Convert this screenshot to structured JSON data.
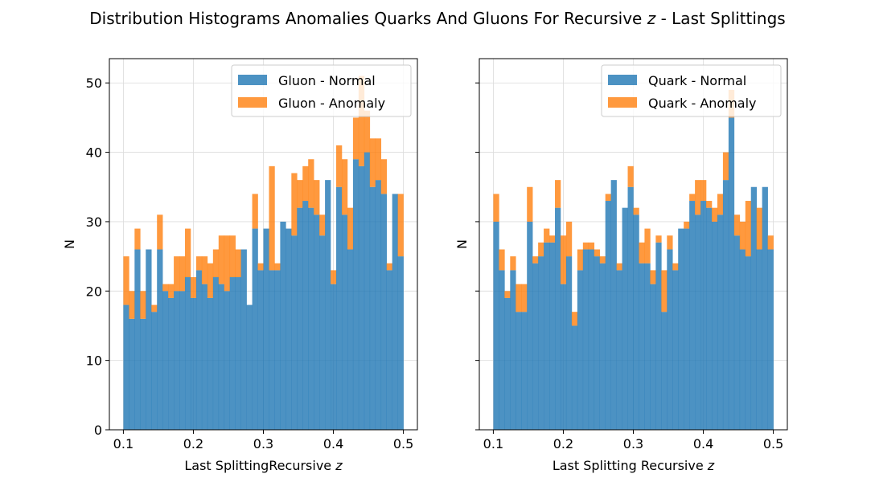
{
  "figure": {
    "title_prefix": "Distribution Histograms Anomalies Quarks And Gluons For Recursive ",
    "title_italic": "z",
    "title_suffix": " - Last Splittings"
  },
  "colors": {
    "normal": "#1f77b4",
    "anomaly": "#ff7f0e",
    "grid": "#dcdcdc"
  },
  "chart_data": [
    {
      "type": "bar",
      "stacked": true,
      "title": "",
      "xlabel_prefix": "Last SplittingRecursive ",
      "xlabel_italic": "z",
      "ylabel": "N",
      "xlim": [
        0.08,
        0.52
      ],
      "ylim": [
        0,
        53.5
      ],
      "xticks": [
        "0.1",
        "0.2",
        "0.3",
        "0.4",
        "0.5"
      ],
      "xtick_values": [
        0.1,
        0.2,
        0.3,
        0.4,
        0.5
      ],
      "yticks": [
        "0",
        "10",
        "20",
        "30",
        "40",
        "50"
      ],
      "ytick_values": [
        0,
        10,
        20,
        30,
        40,
        50
      ],
      "grid": true,
      "legend_position": "top-right",
      "bin_start": 0.1,
      "bin_width": 0.008,
      "series": [
        {
          "name": "Gluon - Normal",
          "values": [
            18,
            16,
            26,
            16,
            26,
            17,
            26,
            20,
            19,
            20,
            20,
            22,
            19,
            23,
            21,
            19,
            22,
            21,
            20,
            22,
            22,
            26,
            18,
            29,
            23,
            29,
            23,
            23,
            30,
            29,
            28,
            32,
            33,
            32,
            31,
            28,
            36,
            21,
            35,
            31,
            26,
            39,
            38,
            40,
            35,
            36,
            34,
            23,
            34,
            25
          ]
        },
        {
          "name": "Gluon - Anomaly",
          "values": [
            7,
            4,
            3,
            4,
            0,
            1,
            5,
            1,
            2,
            5,
            5,
            7,
            3,
            2,
            4,
            5,
            4,
            7,
            8,
            6,
            4,
            0,
            -3,
            5,
            1,
            0,
            15,
            1,
            0,
            0,
            9,
            4,
            5,
            7,
            5,
            3,
            0,
            2,
            6,
            8,
            6,
            6,
            13,
            6,
            7,
            6,
            5,
            1,
            0,
            9
          ]
        }
      ]
    },
    {
      "type": "bar",
      "stacked": true,
      "title": "",
      "xlabel_prefix": "Last Splitting Recursive ",
      "xlabel_italic": "z",
      "ylabel": "N",
      "xlim": [
        0.08,
        0.52
      ],
      "ylim": [
        0,
        53.5
      ],
      "xticks": [
        "0.1",
        "0.2",
        "0.3",
        "0.4",
        "0.5"
      ],
      "xtick_values": [
        0.1,
        0.2,
        0.3,
        0.4,
        0.5
      ],
      "yticks": [
        "0",
        "10",
        "20",
        "30",
        "40",
        "50"
      ],
      "ytick_values": [
        0,
        10,
        20,
        30,
        40,
        50
      ],
      "grid": true,
      "legend_position": "top-right",
      "bin_start": 0.1,
      "bin_width": 0.008,
      "series": [
        {
          "name": "Quark - Normal",
          "values": [
            30,
            23,
            19,
            23,
            17,
            17,
            30,
            24,
            25,
            27,
            27,
            32,
            21,
            25,
            15,
            23,
            26,
            26,
            25,
            24,
            33,
            36,
            23,
            32,
            35,
            31,
            24,
            24,
            21,
            27,
            17,
            26,
            23,
            29,
            29,
            33,
            31,
            33,
            32,
            30,
            31,
            36,
            45,
            28,
            26,
            25,
            35,
            26,
            35,
            26
          ]
        },
        {
          "name": "Quark - Anomaly",
          "values": [
            4,
            3,
            1,
            2,
            4,
            4,
            5,
            1,
            2,
            2,
            1,
            4,
            7,
            5,
            2,
            3,
            1,
            1,
            1,
            1,
            1,
            0,
            1,
            0,
            3,
            1,
            3,
            5,
            2,
            1,
            6,
            2,
            1,
            0,
            1,
            1,
            5,
            3,
            1,
            2,
            3,
            4,
            4,
            3,
            4,
            8,
            0,
            6,
            0,
            2
          ]
        }
      ]
    }
  ],
  "legends": [
    {
      "items": [
        "Gluon - Normal",
        "Gluon - Anomaly"
      ]
    },
    {
      "items": [
        "Quark - Normal",
        "Quark - Anomaly"
      ]
    }
  ]
}
